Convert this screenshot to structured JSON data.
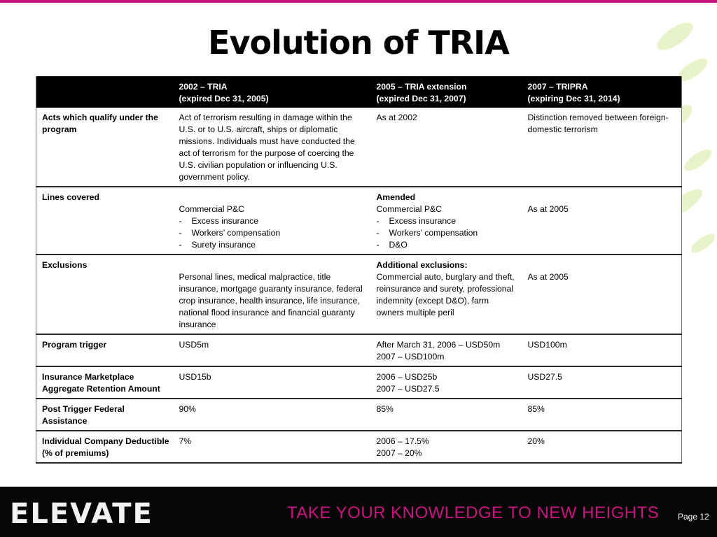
{
  "slide": {
    "title": "Evolution of TRIA",
    "page_number": "Page 12"
  },
  "footer": {
    "logo_text": "ELEVATE",
    "tagline": "TAKE YOUR KNOWLEDGE TO NEW HEIGHTS"
  },
  "colors": {
    "accent": "#c8157f",
    "header_bg": "#000000",
    "footer_bg": "#060606"
  },
  "table": {
    "headers": [
      {
        "line1": "",
        "line2": ""
      },
      {
        "line1": "2002 – TRIA",
        "line2": "(expired Dec 31, 2005)"
      },
      {
        "line1": "2005 – TRIA extension",
        "line2": "(expired Dec 31, 2007)"
      },
      {
        "line1": "2007 – TRIPRA",
        "line2": "(expiring Dec 31, 2014)"
      }
    ],
    "rows": {
      "acts": {
        "label": "Acts which qualify under the program",
        "c2002": "Act of terrorism resulting in damage within the U.S. or to U.S. aircraft, ships or diplomatic missions. Individuals must have conducted the act of terrorism for the purpose of coercing the U.S. civilian population or influencing U.S. government policy.",
        "c2005": "As at 2002",
        "c2007": "Distinction removed between foreign-domestic terrorism"
      },
      "lines": {
        "label": "Lines covered",
        "c2002_head": "Commercial P&C",
        "c2002_items": [
          "Excess insurance",
          "Workers’ compensation",
          "Surety insurance"
        ],
        "c2005_title": "Amended",
        "c2005_head": "Commercial P&C",
        "c2005_items": [
          "Excess insurance",
          "Workers’ compensation",
          "D&O"
        ],
        "c2007": "As at 2005"
      },
      "exclusions": {
        "label": "Exclusions",
        "c2002": "Personal lines, medical malpractice, title insurance, mortgage guaranty insurance, federal crop insurance, health insurance, life insurance, national flood insurance and financial guaranty insurance",
        "c2005_title": "Additional exclusions:",
        "c2005": "Commercial auto, burglary and theft, reinsurance and surety, professional indemnity (except D&O), farm owners multiple peril",
        "c2007": "As at 2005"
      },
      "trigger": {
        "label": "Program trigger",
        "c2002": "USD5m",
        "c2005_line1": "After March 31, 2006 – USD50m",
        "c2005_line2": "2007 – USD100m",
        "c2007": "USD100m"
      },
      "retention": {
        "label": "Insurance Marketplace Aggregate Retention Amount",
        "c2002": "USD15b",
        "c2005_line1": "2006 – USD25b",
        "c2005_line2": "2007 – USD27.5",
        "c2007": "USD27.5"
      },
      "assistance": {
        "label": "Post Trigger Federal Assistance",
        "c2002": "90%",
        "c2005": "85%",
        "c2007": "85%"
      },
      "deductible": {
        "label": "Individual Company Deductible (% of premiums)",
        "c2002": "7%",
        "c2005_line1": "2006 – 17.5%",
        "c2005_line2": "2007 – 20%",
        "c2007": "20%"
      }
    }
  }
}
